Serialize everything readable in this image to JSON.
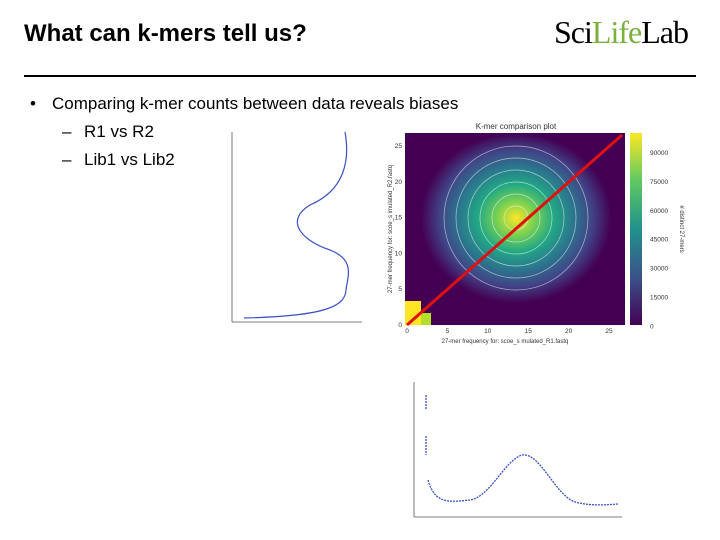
{
  "header": {
    "title": "What can k-mers tell us?",
    "logo_left": "Sci",
    "logo_middle": "Life",
    "logo_right": "Lab"
  },
  "bullets": [
    {
      "text": "Comparing k-mer counts between data reveals biases",
      "sub": [
        "R1 vs R2",
        "Lib1 vs Lib2"
      ]
    }
  ],
  "comparison_plot": {
    "title": "K-mer comparison plot",
    "x_label": "27-mer frequency for: scoe_s mulated_R1.fastq",
    "y_label": "27-mer frequency for: scoe_s imulated_R2.fastq",
    "colorbar_label": "# distinct 27-mers",
    "x_ticks": [
      "0",
      "5",
      "10",
      "15",
      "20",
      "25"
    ],
    "y_ticks": [
      "0",
      "5",
      "10",
      "15",
      "20",
      "25"
    ],
    "colorbar_ticks": [
      "90000",
      "75000",
      "60000",
      "45000",
      "30000",
      "15000",
      "0"
    ]
  }
}
